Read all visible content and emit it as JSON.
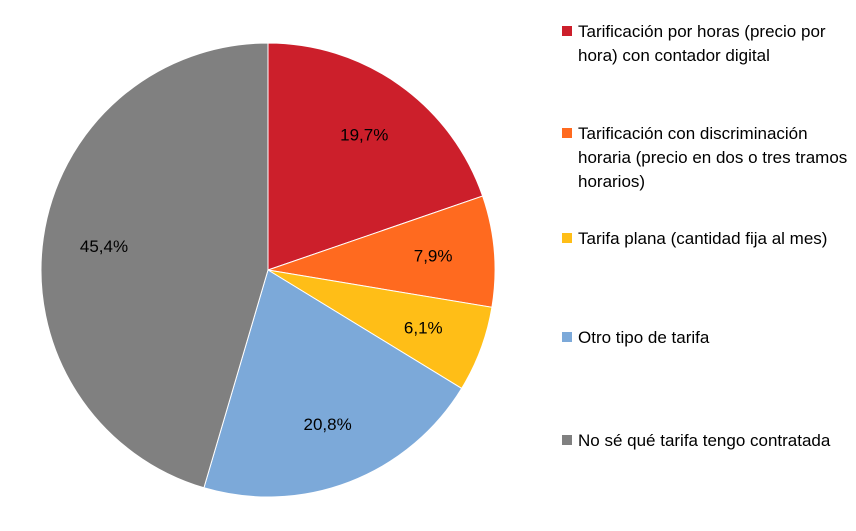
{
  "chart_data": {
    "type": "pie",
    "start_angle_deg": 0,
    "direction": "clockwise",
    "legend_position": "right",
    "slices": [
      {
        "name": "Tarificación por horas (precio por hora) con contador digital",
        "value": 19.7,
        "label": "19,7%",
        "color": "#CC1F2B"
      },
      {
        "name": "Tarificación con discriminación horaria (precio en dos o tres tramos horarios)",
        "value": 7.9,
        "label": "7,9%",
        "color": "#FF6A1F"
      },
      {
        "name": "Tarifa plana (cantidad fija al mes)",
        "value": 6.1,
        "label": "6,1%",
        "color": "#FFBE17"
      },
      {
        "name": "Otro tipo de tarifa",
        "value": 20.8,
        "label": "20,8%",
        "color": "#7CA9D9"
      },
      {
        "name": "No sé qué tarifa tengo contratada",
        "value": 45.4,
        "label": "45,4%",
        "color": "#808080"
      }
    ]
  }
}
